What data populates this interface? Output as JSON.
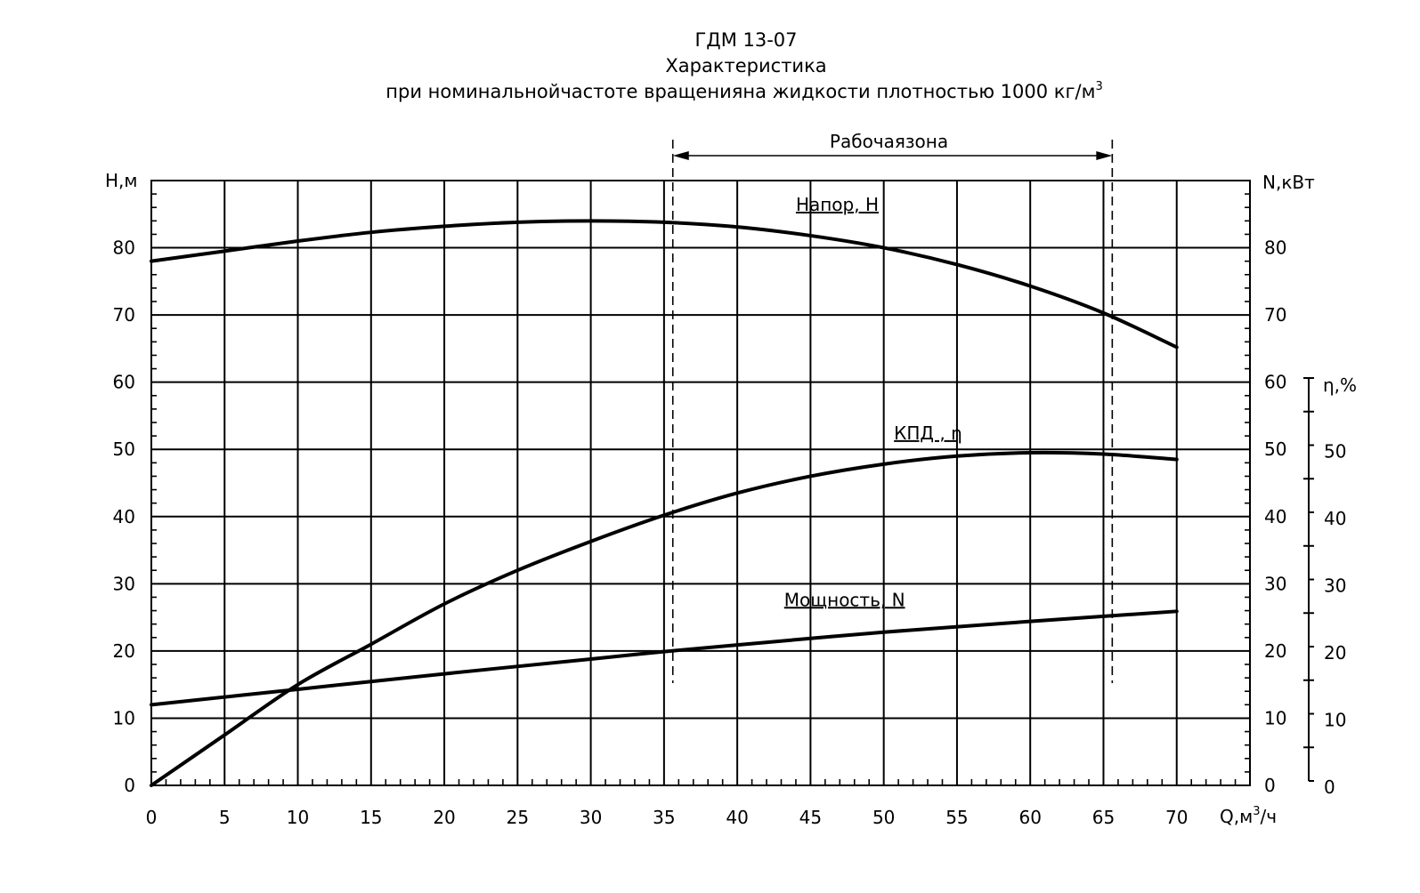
{
  "chart_data": {
    "type": "line",
    "title_lines": [
      "ГДМ 13-07",
      "Характеристика",
      "при номинальнойчастоте вращенияна жидкости плотностью 1000 кг/м"
    ],
    "title_sup": "3",
    "x_label": "Q,м",
    "x_label_sup": "3",
    "x_label_tail": "/ч",
    "y_left_label": "H,м",
    "y_right_label": "N,кВт",
    "y_eta_label": "η,%",
    "x_ticks": [
      "0",
      "5",
      "10",
      "15",
      "20",
      "25",
      "30",
      "35",
      "40",
      "45",
      "50",
      "55",
      "60",
      "65",
      "70"
    ],
    "y_ticks": [
      "0",
      "10",
      "20",
      "30",
      "40",
      "50",
      "60",
      "70",
      "80"
    ],
    "eta_ticks": [
      "0",
      "10",
      "20",
      "30",
      "40",
      "50"
    ],
    "xlim": [
      0,
      75
    ],
    "ylim": [
      0,
      90
    ],
    "eta_lim": [
      0,
      60
    ],
    "working_zone": {
      "label": "Рабочаязона",
      "x_start": 35.6,
      "x_end": 65.6
    },
    "series": [
      {
        "name": "Напор, H",
        "x": [
          0,
          5,
          10,
          15,
          20,
          25,
          30,
          35,
          40,
          45,
          50,
          55,
          60,
          65,
          70
        ],
        "values": [
          78,
          79.5,
          81,
          82.3,
          83.2,
          83.8,
          84,
          83.8,
          83.1,
          81.8,
          80,
          77.5,
          74.3,
          70.3,
          65.2
        ]
      },
      {
        "name": "КПД , η",
        "x": [
          0,
          5,
          10,
          15,
          20,
          25,
          30,
          35,
          40,
          45,
          50,
          55,
          60,
          65,
          70
        ],
        "values": [
          0,
          7.5,
          15,
          21,
          27,
          32,
          36.3,
          40.2,
          43.5,
          46,
          47.8,
          49,
          49.5,
          49.3,
          48.5
        ]
      },
      {
        "name": "Мощность, N",
        "x": [
          0,
          10,
          20,
          30,
          35,
          40,
          50,
          60,
          70
        ],
        "values": [
          12,
          14.3,
          16.6,
          18.8,
          19.9,
          20.9,
          22.8,
          24.4,
          25.9
        ]
      }
    ],
    "grid": true
  }
}
